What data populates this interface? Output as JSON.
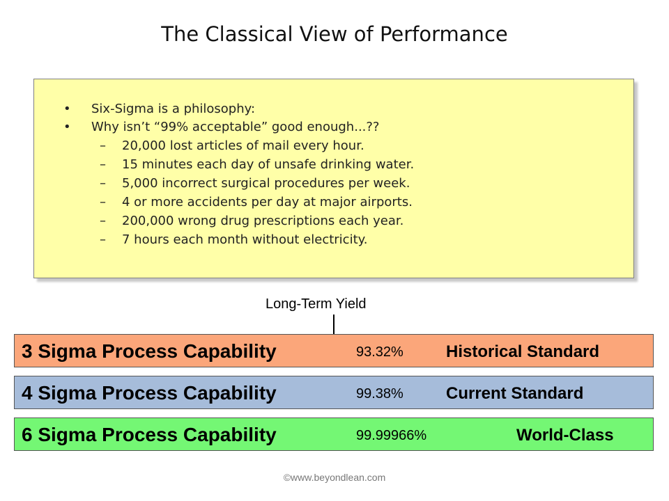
{
  "slide": {
    "title": "The Classical View of Performance"
  },
  "notes": {
    "bullets": [
      {
        "marker": "•",
        "text": "Six-Sigma is a philosophy:"
      },
      {
        "marker": "•",
        "text": "Why isn’t “99% acceptable” good enough...??"
      }
    ],
    "sub_bullets": [
      {
        "marker": "–",
        "text": "20,000 lost articles of mail every hour."
      },
      {
        "marker": "–",
        "text": "15 minutes each day of unsafe drinking water."
      },
      {
        "marker": "–",
        "text": "5,000 incorrect surgical procedures per week."
      },
      {
        "marker": "–",
        "text": "4 or more accidents per day at major airports."
      },
      {
        "marker": "–",
        "text": "200,000 wrong drug prescriptions each year."
      },
      {
        "marker": "–",
        "text": "7 hours each month without electricity."
      }
    ]
  },
  "yield": {
    "label": "Long-Term Yield"
  },
  "bands": [
    {
      "capability": "3 Sigma Process Capability",
      "yield": "93.32%",
      "standard": "Historical Standard",
      "color": "#fba67a"
    },
    {
      "capability": "4 Sigma Process Capability",
      "yield": "99.38%",
      "standard": "Current Standard",
      "color": "#a6bcda"
    },
    {
      "capability": "6 Sigma Process Capability",
      "yield": "99.99966%",
      "standard": "World-Class",
      "color": "#74f774"
    }
  ],
  "footer": {
    "copyright": "©www.beyondlean.com"
  }
}
